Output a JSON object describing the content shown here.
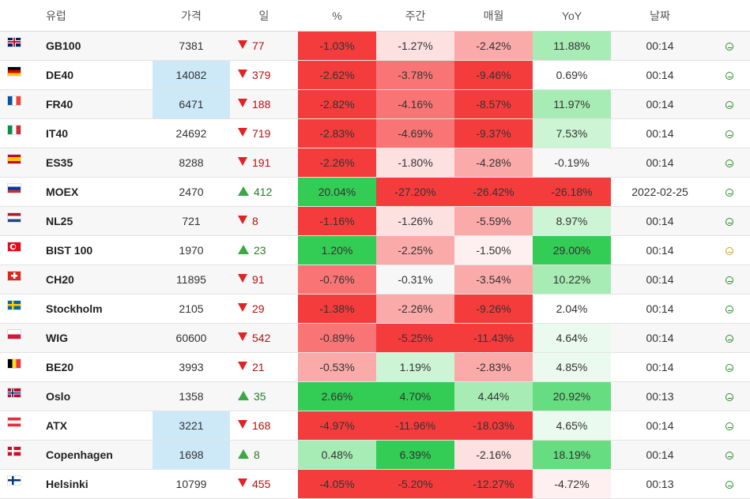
{
  "header": {
    "name": "유럽",
    "price": "가격",
    "day": "일",
    "pct": "%",
    "week": "주간",
    "month": "매월",
    "yoy": "YoY",
    "date": "날짜"
  },
  "colors": {
    "red_strong": "#f53c3c",
    "red_mid": "#f97575",
    "red_light": "#fbaaaa",
    "red_pale": "#fde0e0",
    "red_faint": "#fef0f0",
    "green_strong": "#33cc55",
    "green_mid": "#66dd80",
    "green_light": "#a8ecb5",
    "green_pale": "#cdf5d5",
    "green_faint": "#ebfaee",
    "price_highlight": "#cde9f8"
  },
  "rows": [
    {
      "flag": "uk-flag-icon",
      "name": "GB100",
      "price": "7381",
      "dir": "down",
      "day": "77",
      "pct": "-1.03%",
      "week": "-1.27%",
      "month": "-2.42%",
      "yoy": "11.88%",
      "date": "00:14",
      "status": "ok",
      "hl": false,
      "c": [
        "red_strong",
        "red_pale",
        "red_light",
        "green_light"
      ]
    },
    {
      "flag": "de-flag-icon",
      "name": "DE40",
      "price": "14082",
      "dir": "down",
      "day": "379",
      "pct": "-2.62%",
      "week": "-3.78%",
      "month": "-9.46%",
      "yoy": "0.69%",
      "date": "00:14",
      "status": "ok",
      "hl": true,
      "c": [
        "red_strong",
        "red_mid",
        "red_strong",
        "none"
      ]
    },
    {
      "flag": "fr-flag-icon",
      "name": "FR40",
      "price": "6471",
      "dir": "down",
      "day": "188",
      "pct": "-2.82%",
      "week": "-4.16%",
      "month": "-8.57%",
      "yoy": "11.97%",
      "date": "00:14",
      "status": "ok",
      "hl": true,
      "c": [
        "red_strong",
        "red_mid",
        "red_strong",
        "green_light"
      ]
    },
    {
      "flag": "it-flag-icon",
      "name": "IT40",
      "price": "24692",
      "dir": "down",
      "day": "719",
      "pct": "-2.83%",
      "week": "-4.69%",
      "month": "-9.37%",
      "yoy": "7.53%",
      "date": "00:14",
      "status": "ok",
      "hl": false,
      "c": [
        "red_strong",
        "red_mid",
        "red_strong",
        "green_pale"
      ]
    },
    {
      "flag": "es-flag-icon",
      "name": "ES35",
      "price": "8288",
      "dir": "down",
      "day": "191",
      "pct": "-2.26%",
      "week": "-1.80%",
      "month": "-4.28%",
      "yoy": "-0.19%",
      "date": "00:14",
      "status": "ok",
      "hl": false,
      "c": [
        "red_strong",
        "red_pale",
        "red_light",
        "none"
      ]
    },
    {
      "flag": "ru-flag-icon",
      "name": "MOEX",
      "price": "2470",
      "dir": "up",
      "day": "412",
      "pct": "20.04%",
      "week": "-27.20%",
      "month": "-26.42%",
      "yoy": "-26.18%",
      "date": "2022-02-25",
      "status": "ok",
      "hl": false,
      "c": [
        "green_strong",
        "red_strong",
        "red_strong",
        "red_strong"
      ]
    },
    {
      "flag": "nl-flag-icon",
      "name": "NL25",
      "price": "721",
      "dir": "down",
      "day": "8",
      "pct": "-1.16%",
      "week": "-1.26%",
      "month": "-5.59%",
      "yoy": "8.97%",
      "date": "00:14",
      "status": "ok",
      "hl": false,
      "c": [
        "red_strong",
        "red_pale",
        "red_light",
        "green_pale"
      ]
    },
    {
      "flag": "tr-flag-icon",
      "name": "BIST 100",
      "price": "1970",
      "dir": "up",
      "day": "23",
      "pct": "1.20%",
      "week": "-2.25%",
      "month": "-1.50%",
      "yoy": "29.00%",
      "date": "00:14",
      "status": "warn",
      "hl": false,
      "c": [
        "green_strong",
        "red_light",
        "red_faint",
        "green_strong"
      ]
    },
    {
      "flag": "ch-flag-icon",
      "name": "CH20",
      "price": "11895",
      "dir": "down",
      "day": "91",
      "pct": "-0.76%",
      "week": "-0.31%",
      "month": "-3.54%",
      "yoy": "10.22%",
      "date": "00:14",
      "status": "ok",
      "hl": false,
      "c": [
        "red_mid",
        "none",
        "red_light",
        "green_light"
      ]
    },
    {
      "flag": "se-flag-icon",
      "name": "Stockholm",
      "price": "2105",
      "dir": "down",
      "day": "29",
      "pct": "-1.38%",
      "week": "-2.26%",
      "month": "-9.26%",
      "yoy": "2.04%",
      "date": "00:14",
      "status": "ok",
      "hl": false,
      "c": [
        "red_strong",
        "red_light",
        "red_strong",
        "none"
      ]
    },
    {
      "flag": "pl-flag-icon",
      "name": "WIG",
      "price": "60600",
      "dir": "down",
      "day": "542",
      "pct": "-0.89%",
      "week": "-5.25%",
      "month": "-11.43%",
      "yoy": "4.64%",
      "date": "00:14",
      "status": "ok",
      "hl": false,
      "c": [
        "red_mid",
        "red_strong",
        "red_strong",
        "green_faint"
      ]
    },
    {
      "flag": "be-flag-icon",
      "name": "BE20",
      "price": "3993",
      "dir": "down",
      "day": "21",
      "pct": "-0.53%",
      "week": "1.19%",
      "month": "-2.83%",
      "yoy": "4.85%",
      "date": "00:14",
      "status": "ok",
      "hl": false,
      "c": [
        "red_light",
        "green_pale",
        "red_light",
        "green_faint"
      ]
    },
    {
      "flag": "no-flag-icon",
      "name": "Oslo",
      "price": "1358",
      "dir": "up",
      "day": "35",
      "pct": "2.66%",
      "week": "4.70%",
      "month": "4.44%",
      "yoy": "20.92%",
      "date": "00:13",
      "status": "ok",
      "hl": false,
      "c": [
        "green_strong",
        "green_strong",
        "green_light",
        "green_mid"
      ]
    },
    {
      "flag": "at-flag-icon",
      "name": "ATX",
      "price": "3221",
      "dir": "down",
      "day": "168",
      "pct": "-4.97%",
      "week": "-11.96%",
      "month": "-18.03%",
      "yoy": "4.65%",
      "date": "00:14",
      "status": "ok",
      "hl": true,
      "c": [
        "red_strong",
        "red_strong",
        "red_strong",
        "green_faint"
      ]
    },
    {
      "flag": "dk-flag-icon",
      "name": "Copenhagen",
      "price": "1698",
      "dir": "up",
      "day": "8",
      "pct": "0.48%",
      "week": "6.39%",
      "month": "-2.16%",
      "yoy": "18.19%",
      "date": "00:14",
      "status": "ok",
      "hl": true,
      "c": [
        "green_light",
        "green_strong",
        "red_pale",
        "green_mid"
      ]
    },
    {
      "flag": "fi-flag-icon",
      "name": "Helsinki",
      "price": "10799",
      "dir": "down",
      "day": "455",
      "pct": "-4.05%",
      "week": "-5.20%",
      "month": "-12.27%",
      "yoy": "-4.72%",
      "date": "00:13",
      "status": "ok",
      "hl": false,
      "c": [
        "red_strong",
        "red_strong",
        "red_strong",
        "red_faint"
      ]
    }
  ]
}
